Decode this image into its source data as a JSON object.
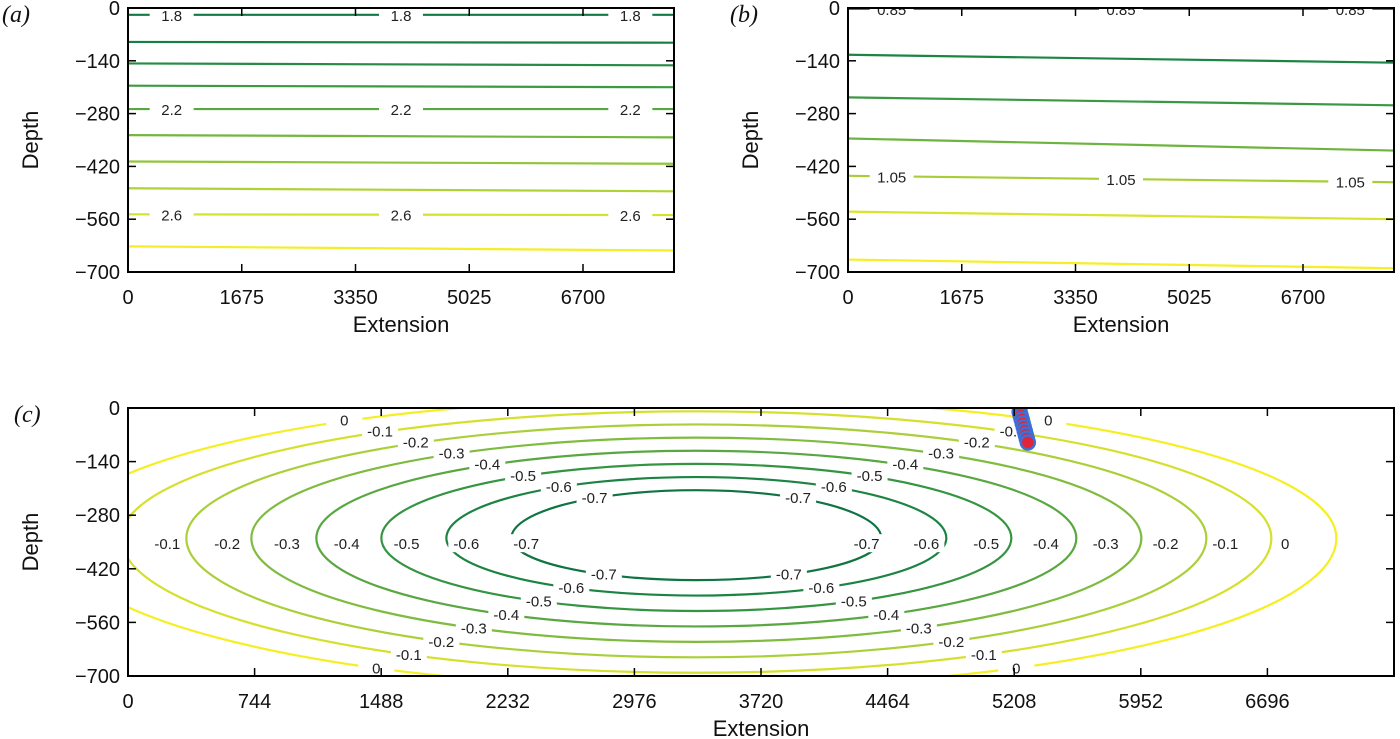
{
  "chart_data": [
    {
      "type": "contour",
      "panel_label": "(a)",
      "xlabel": "Extension",
      "ylabel": "Depth",
      "xlim": [
        0,
        8040
      ],
      "ylim": [
        -700,
        0
      ],
      "xticks": [
        "0",
        "1675",
        "3350",
        "5025",
        "6700"
      ],
      "yticks": [
        "0",
        "−140",
        "−280",
        "−420",
        "−560",
        "−700"
      ],
      "levels": [
        {
          "value": 1.8,
          "depth_left": -18,
          "depth_right": -18,
          "color": "#117a44",
          "label": "1.8"
        },
        {
          "value": 1.9,
          "depth_left": -90,
          "depth_right": -92,
          "color": "#167f44",
          "label": ""
        },
        {
          "value": 2.0,
          "depth_left": -147,
          "depth_right": -152,
          "color": "#268b43",
          "label": ""
        },
        {
          "value": 2.1,
          "depth_left": -206,
          "depth_right": -210,
          "color": "#3c9a43",
          "label": ""
        },
        {
          "value": 2.2,
          "depth_left": -268,
          "depth_right": -268,
          "color": "#58a840",
          "label": "2.2"
        },
        {
          "value": 2.3,
          "depth_left": -337,
          "depth_right": -343,
          "color": "#74b63e",
          "label": ""
        },
        {
          "value": 2.4,
          "depth_left": -407,
          "depth_right": -413,
          "color": "#92c43b",
          "label": ""
        },
        {
          "value": 2.5,
          "depth_left": -478,
          "depth_right": -486,
          "color": "#b1d236",
          "label": ""
        },
        {
          "value": 2.6,
          "depth_left": -547,
          "depth_right": -549,
          "color": "#d4e12e",
          "label": "2.6"
        },
        {
          "value": 2.7,
          "depth_left": -632,
          "depth_right": -643,
          "color": "#f2ee27",
          "label": ""
        }
      ]
    },
    {
      "type": "contour",
      "panel_label": "(b)",
      "xlabel": "Extension",
      "ylabel": "Depth",
      "xlim": [
        0,
        8040
      ],
      "ylim": [
        -700,
        0
      ],
      "xticks": [
        "0",
        "1675",
        "3350",
        "5025",
        "6700"
      ],
      "yticks": [
        "0",
        "−140",
        "−280",
        "−420",
        "−560",
        "−700"
      ],
      "levels": [
        {
          "value": 0.85,
          "depth_left": -2,
          "depth_right": -2,
          "color": "#117a44",
          "label": "0.85"
        },
        {
          "value": 0.9,
          "depth_left": -124,
          "depth_right": -145,
          "color": "#1d8444",
          "label": ""
        },
        {
          "value": 0.95,
          "depth_left": -237,
          "depth_right": -258,
          "color": "#3a9843",
          "label": ""
        },
        {
          "value": 1.0,
          "depth_left": -346,
          "depth_right": -378,
          "color": "#6db33f",
          "label": ""
        },
        {
          "value": 1.05,
          "depth_left": -445,
          "depth_right": -462,
          "color": "#a7cd37",
          "label": "1.05"
        },
        {
          "value": 1.1,
          "depth_left": -540,
          "depth_right": -560,
          "color": "#d9e32d",
          "label": ""
        },
        {
          "value": 1.15,
          "depth_left": -667,
          "depth_right": -690,
          "color": "#f4ef26",
          "label": ""
        }
      ]
    },
    {
      "type": "contour",
      "panel_label": "(c)",
      "xlabel": "Extension",
      "ylabel": "Depth",
      "xlim": [
        0,
        7440
      ],
      "ylim": [
        -700,
        0
      ],
      "xticks": [
        "0",
        "744",
        "1488",
        "2232",
        "2976",
        "3720",
        "4464",
        "5208",
        "5952",
        "6696"
      ],
      "yticks": [
        "0",
        "−140",
        "−280",
        "−420",
        "−560",
        "−700"
      ],
      "center": [
        3340,
        -340
      ],
      "levels": [
        {
          "value": 0,
          "color": "#f5ef22",
          "label": "0"
        },
        {
          "value": -0.1,
          "color": "#d5e02c",
          "label": "-0.1"
        },
        {
          "value": -0.2,
          "color": "#aacf39",
          "label": "-0.2"
        },
        {
          "value": -0.3,
          "color": "#7fbb3f",
          "label": "-0.3"
        },
        {
          "value": -0.4,
          "color": "#58a740",
          "label": "-0.4"
        },
        {
          "value": -0.5,
          "color": "#359442",
          "label": "-0.5"
        },
        {
          "value": -0.6,
          "color": "#1c8343",
          "label": "-0.6"
        },
        {
          "value": -0.7,
          "color": "#0f7342",
          "label": "-0.7"
        }
      ],
      "markers": {
        "x": [
          5240,
          5246,
          5252,
          5258,
          5264,
          5270,
          5276,
          5282,
          5288
        ],
        "y": [
          -10,
          -20,
          -30,
          -40,
          -50,
          -60,
          -70,
          -80,
          -90
        ],
        "fill": "#e0243a",
        "stroke": "#3d6fd6"
      }
    }
  ]
}
